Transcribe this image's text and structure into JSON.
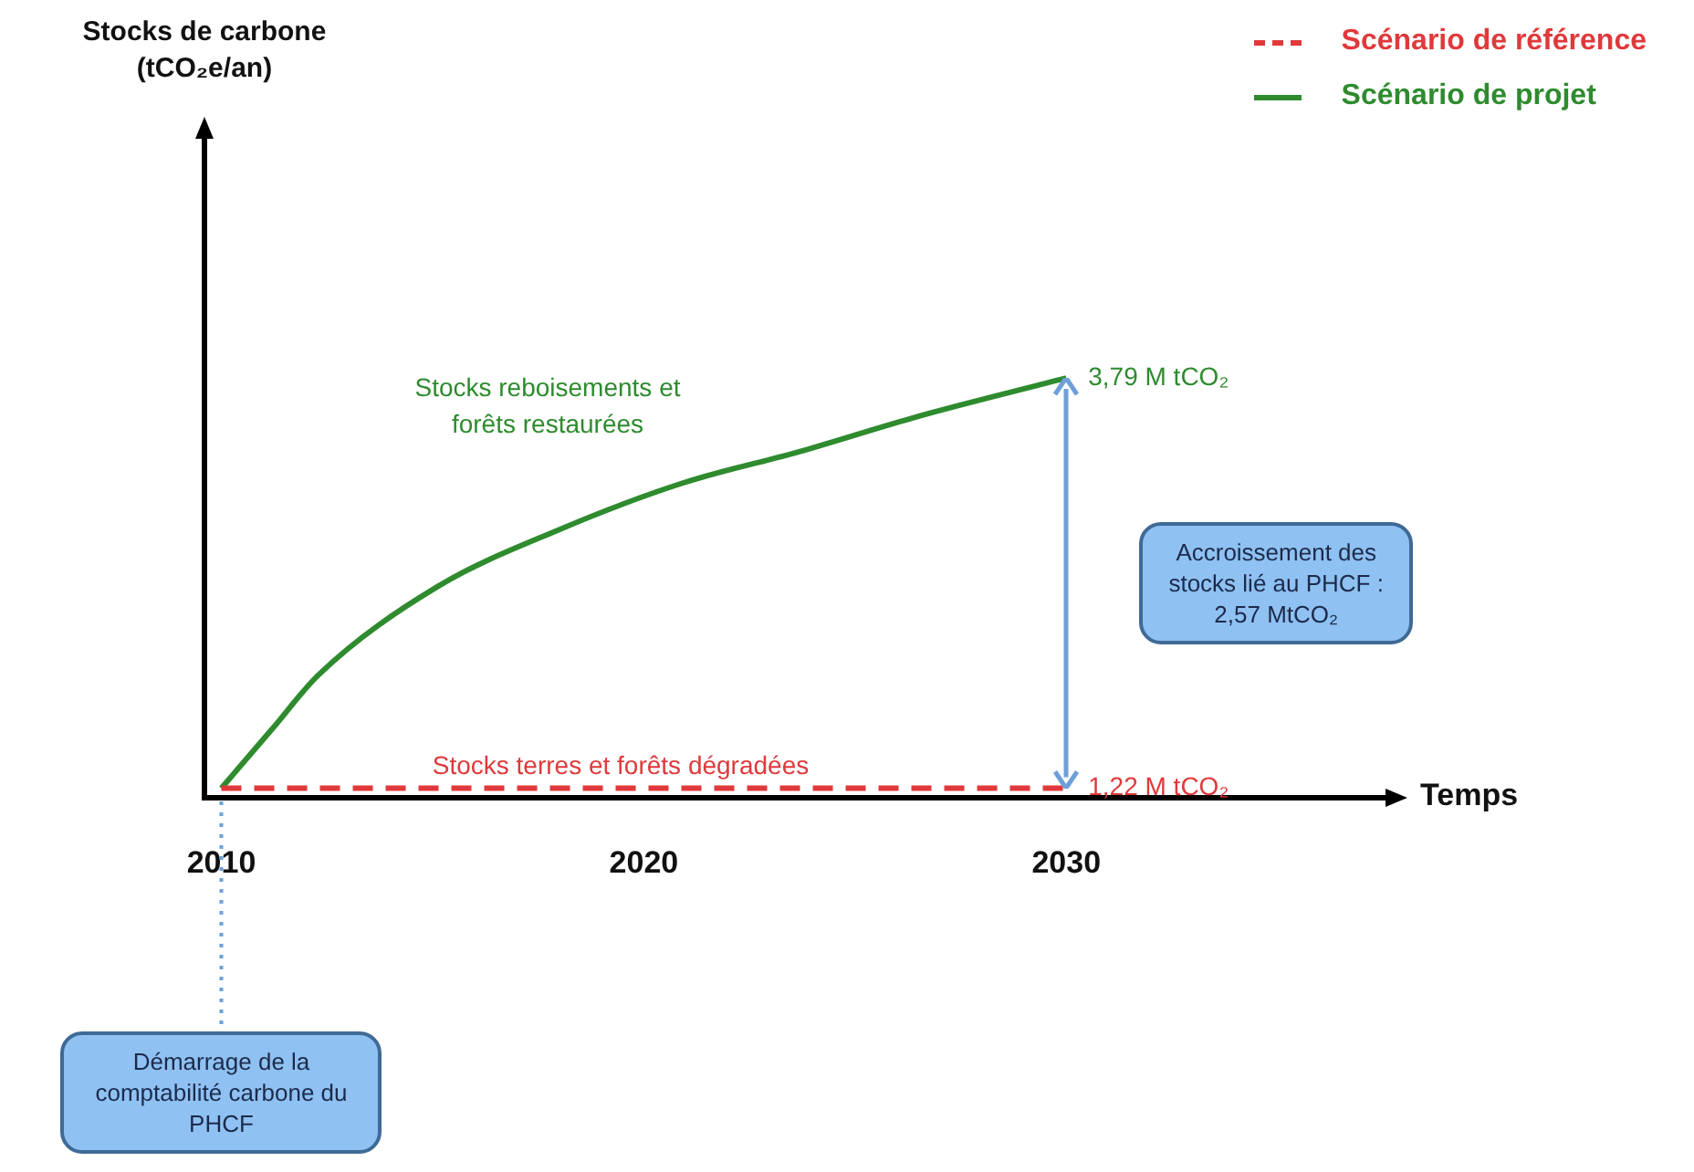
{
  "chart_data": {
    "type": "line",
    "xlabel": "Temps",
    "ylabel": "Stocks de carbone (tCO₂e/an)",
    "xlim": [
      2009.6,
      2037.6
    ],
    "xticks": [
      2010,
      2020,
      2030
    ],
    "ylim": [
      1.16,
      5.3
    ],
    "tick_labels": "x",
    "legend": "top right",
    "marker": "none",
    "series": [
      {
        "name": "Scénario de référence",
        "color": "#e0393b",
        "line_style": "dashed",
        "x": [
          2010,
          2030
        ],
        "values": [
          1.22,
          1.22
        ],
        "value_labels": [
          null,
          "1,22 M tCO₂"
        ]
      },
      {
        "name": "Scénario de projet",
        "color": "#2e8b2e",
        "line_style": "solid",
        "x": [
          2010,
          2011.2,
          2012.3,
          2015.1,
          2018,
          2020.9,
          2023.7,
          2026.5,
          2030
        ],
        "values": [
          1.22,
          1.59,
          1.93,
          2.48,
          2.84,
          3.13,
          3.33,
          3.55,
          3.79
        ],
        "value_labels": [
          null,
          null,
          null,
          null,
          null,
          null,
          null,
          null,
          "3,79 M tCO₂"
        ]
      }
    ],
    "ref_lines": [
      {
        "axis": "x",
        "value": 2010,
        "label": "Démarrage de la comptabilité carbone du PHCF",
        "color": "#6f9fd8",
        "line_style": "dotted"
      }
    ],
    "annotations": [
      "Stocks reboisements et forêts restaurées",
      "Stocks terres et forêts dégradées",
      "Accroissement des stocks lié au PHCF : 2,57 MtCO₂"
    ]
  }
}
